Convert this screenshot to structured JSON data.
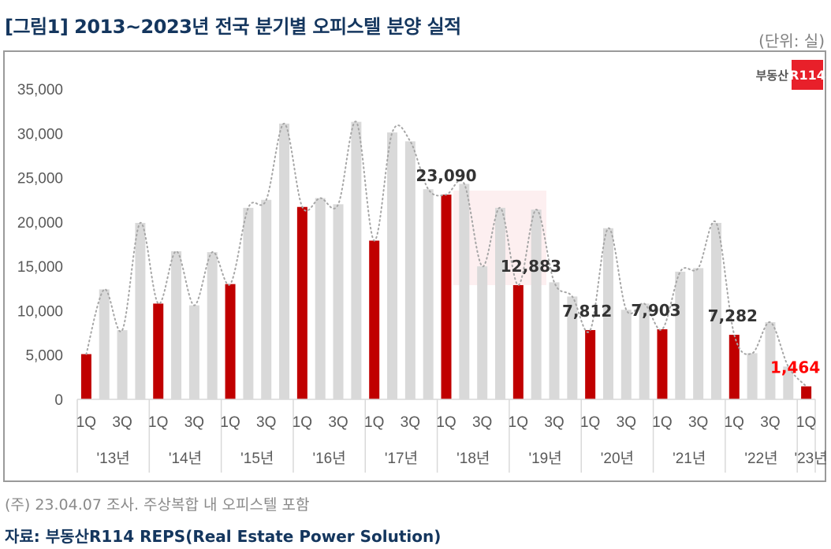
{
  "title": "[그림1] 2013~2023년 전국 분기별 오피스텔 분양 실적",
  "unit": "(단위: 실)",
  "logo": {
    "text": "부동산",
    "box": "R114"
  },
  "note": "(주) 23.04.07 조사. 주상복합 내 오피스텔 포함",
  "source": "자료: 부동산R114 REPS(Real Estate Power Solution)",
  "chart_data": {
    "type": "bar",
    "title": "2013~2023년 전국 분기별 오피스텔 분양 실적",
    "ylabel": "실",
    "ylim": [
      0,
      35000
    ],
    "yticks": [
      0,
      5000,
      10000,
      15000,
      20000,
      25000,
      30000,
      35000
    ],
    "ytick_labels": [
      "0",
      "5,000",
      "10,000",
      "15,000",
      "20,000",
      "25,000",
      "30,000",
      "35,000"
    ],
    "years": [
      "'13년",
      "'14년",
      "'15년",
      "'16년",
      "'17년",
      "'18년",
      "'19년",
      "'20년",
      "'21년",
      "'22년",
      "'23년"
    ],
    "quarter_tick_labels": [
      "1Q",
      "3Q"
    ],
    "values": [
      5100,
      12400,
      7800,
      19900,
      10800,
      16700,
      10600,
      16600,
      13000,
      21600,
      22500,
      31100,
      21700,
      22700,
      22000,
      31300,
      17900,
      30100,
      29100,
      23700,
      23090,
      24300,
      15000,
      21600,
      12883,
      21400,
      13200,
      11600,
      7812,
      19300,
      10100,
      10800,
      7903,
      14400,
      14800,
      19900,
      7282,
      5200,
      8700,
      3700,
      1464
    ],
    "highlight_quarter": "1Q",
    "data_labels": [
      {
        "index": 20,
        "text": "23,090"
      },
      {
        "index": 24,
        "text": "12,883"
      },
      {
        "index": 28,
        "text": "7,812"
      },
      {
        "index": 32,
        "text": "7,903"
      },
      {
        "index": 36,
        "text": "7,282"
      },
      {
        "index": 40,
        "text": "1,464"
      }
    ],
    "colors": {
      "highlight": "#c00000",
      "base": "#d9d9d9",
      "trend": "#a6a6a6",
      "label": "#333333",
      "last_label": "#ff0000"
    },
    "trend_line": "dotted smooth"
  }
}
